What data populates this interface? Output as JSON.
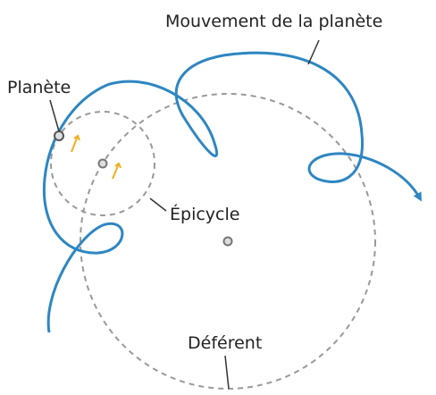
{
  "labels": {
    "motion": "Mouvement de la planète",
    "planet": "Planète",
    "epicycle": "Épicycle",
    "deferent": "Déférent"
  }
}
